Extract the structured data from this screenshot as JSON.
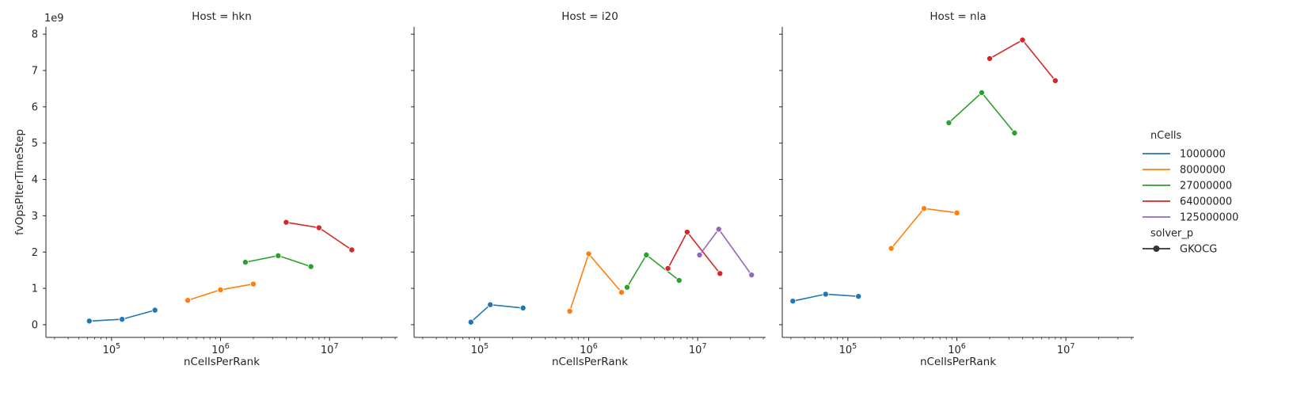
{
  "chart_data": {
    "type": "line",
    "facet_titles": [
      "Host = hkn",
      "Host = i20",
      "Host = nla"
    ],
    "xlabel": "nCellsPerRank",
    "ylabel": "fvOpsPIterTimeStep",
    "y_offset_label": "1e9",
    "x_scale": "log",
    "xlim": [
      25000,
      42000000
    ],
    "ylim": [
      -0.35,
      8.2
    ],
    "y_ticks": [
      "0",
      "1",
      "2",
      "3",
      "4",
      "5",
      "6",
      "7",
      "8"
    ],
    "x_ticks": [
      {
        "value": 100000,
        "base": "10",
        "exp": "5"
      },
      {
        "value": 1000000,
        "base": "10",
        "exp": "6"
      },
      {
        "value": 10000000,
        "base": "10",
        "exp": "7"
      }
    ],
    "legend": {
      "title": "nCells",
      "entries": [
        "1000000",
        "8000000",
        "27000000",
        "64000000",
        "125000000"
      ],
      "style_title": "solver_p",
      "style_entries": [
        "GKOCG"
      ],
      "placement": "right"
    },
    "colors": {
      "1000000": "#1f77b4",
      "8000000": "#ff7f0e",
      "27000000": "#2ca02c",
      "64000000": "#d62728",
      "125000000": "#9467bd"
    },
    "panels": [
      {
        "host": "hkn",
        "series": [
          {
            "name": "1000000",
            "x": [
              62500,
              125000,
              250000
            ],
            "y": [
              0.1,
              0.15,
              0.4
            ]
          },
          {
            "name": "8000000",
            "x": [
              500000,
              1000000,
              2000000
            ],
            "y": [
              0.67,
              0.96,
              1.12
            ]
          },
          {
            "name": "27000000",
            "x": [
              1690000,
              3380000,
              6750000
            ],
            "y": [
              1.72,
              1.9,
              1.6
            ]
          },
          {
            "name": "64000000",
            "x": [
              4000000,
              8000000,
              16000000
            ],
            "y": [
              2.82,
              2.67,
              2.06
            ]
          }
        ]
      },
      {
        "host": "i20",
        "series": [
          {
            "name": "1000000",
            "x": [
              83000,
              125000,
              250000
            ],
            "y": [
              0.07,
              0.55,
              0.46
            ]
          },
          {
            "name": "8000000",
            "x": [
              670000,
              1000000,
              2000000
            ],
            "y": [
              0.37,
              1.95,
              0.89
            ]
          },
          {
            "name": "27000000",
            "x": [
              2250000,
              3380000,
              6750000
            ],
            "y": [
              1.03,
              1.92,
              1.22
            ]
          },
          {
            "name": "64000000",
            "x": [
              5330000,
              8000000,
              16000000
            ],
            "y": [
              1.55,
              2.55,
              1.41
            ]
          },
          {
            "name": "125000000",
            "x": [
              10400000,
              15600000,
              31200000
            ],
            "y": [
              1.92,
              2.63,
              1.37
            ]
          }
        ]
      },
      {
        "host": "nla",
        "series": [
          {
            "name": "1000000",
            "x": [
              31250,
              62500,
              125000
            ],
            "y": [
              0.65,
              0.84,
              0.78
            ]
          },
          {
            "name": "8000000",
            "x": [
              250000,
              500000,
              1000000
            ],
            "y": [
              2.1,
              3.2,
              3.08
            ]
          },
          {
            "name": "27000000",
            "x": [
              844000,
              1690000,
              3380000
            ],
            "y": [
              5.56,
              6.39,
              5.28
            ]
          },
          {
            "name": "64000000",
            "x": [
              2000000,
              4000000,
              8000000
            ],
            "y": [
              7.33,
              7.84,
              6.72
            ]
          }
        ]
      }
    ]
  }
}
